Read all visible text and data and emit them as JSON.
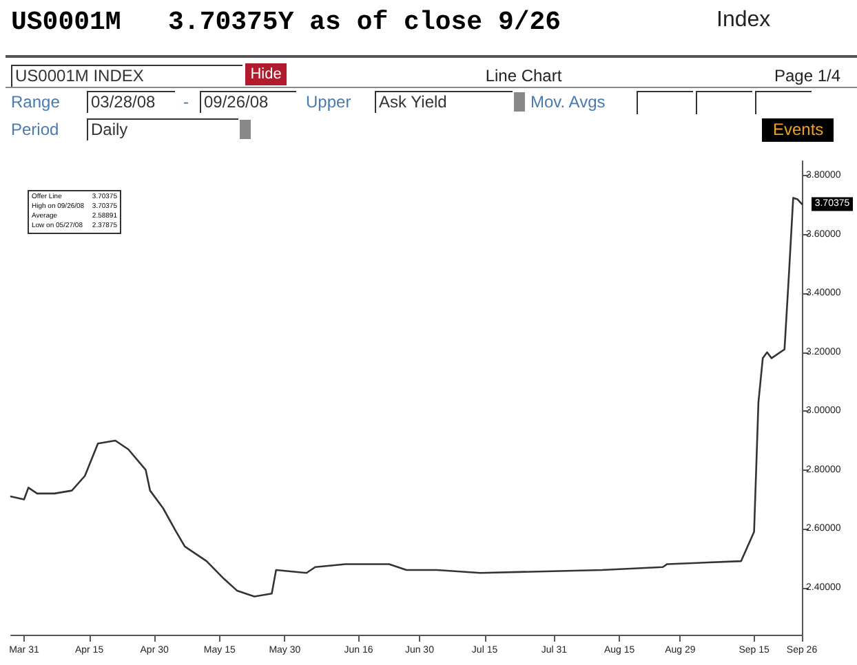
{
  "chart_data": {
    "type": "line",
    "title": "US0001M   3.70375Y as of close 9/26",
    "x": [
      "--03-28",
      "--03-31",
      "--04-01",
      "--04-03",
      "--04-07",
      "--04-11",
      "--04-14",
      "--04-17",
      "--04-21",
      "--04-24",
      "--04-28",
      "--04-29",
      "--05-02",
      "--05-05",
      "--05-07",
      "--05-12",
      "--05-16",
      "--05-19",
      "--05-23",
      "--05-27",
      "--05-28",
      "--06-04",
      "--06-06",
      "--06-13",
      "--06-23",
      "--06-27",
      "--07-04",
      "--07-14",
      "--08-11",
      "--08-25",
      "--08-26",
      "--09-12",
      "--09-15",
      "--09-16",
      "--09-17",
      "--09-18",
      "--09-19",
      "--09-22",
      "--09-23",
      "--09-24",
      "--09-25",
      "--09-26"
    ],
    "series": [
      {
        "color": "#333333",
        "values": [
          2.71,
          2.7,
          2.74,
          2.72,
          2.72,
          2.73,
          2.78,
          2.89,
          2.9,
          2.87,
          2.8,
          2.73,
          2.67,
          2.59,
          2.54,
          2.49,
          2.43,
          2.39,
          2.37,
          2.38,
          2.46,
          2.45,
          2.47,
          2.48,
          2.48,
          2.46,
          2.46,
          2.45,
          2.46,
          2.47,
          2.48,
          2.49,
          2.59,
          3.03,
          3.18,
          3.2,
          3.18,
          3.21,
          3.46,
          3.725,
          3.72,
          3.70375
        ]
      }
    ],
    "xlim": [
      "--03-28",
      "--09-26"
    ],
    "xticks": [
      {
        "value": "--03-31",
        "label": "Mar 31"
      },
      {
        "value": "--04-15",
        "label": "Apr 15"
      },
      {
        "value": "--04-30",
        "label": "Apr 30"
      },
      {
        "value": "--05-15",
        "label": "May 15"
      },
      {
        "value": "--05-30",
        "label": "May 30"
      },
      {
        "value": "--06-16",
        "label": "Jun 16"
      },
      {
        "value": "--06-30",
        "label": "Jun 30"
      },
      {
        "value": "--07-15",
        "label": "Jul 15"
      },
      {
        "value": "--07-31",
        "label": "Jul 31"
      },
      {
        "value": "--08-15",
        "label": "Aug 15"
      },
      {
        "value": "--08-29",
        "label": "Aug 29"
      },
      {
        "value": "--09-15",
        "label": "Sep 15"
      },
      {
        "value": "--09-26",
        "label": "Sep 26"
      }
    ],
    "ylim": [
      2.24,
      3.85
    ],
    "yticks": [
      {
        "value": 2.4,
        "label": "2.40000"
      },
      {
        "value": 2.6,
        "label": "2.60000"
      },
      {
        "value": 2.8,
        "label": "2.80000"
      },
      {
        "value": 3.0,
        "label": "3.00000"
      },
      {
        "value": 3.2,
        "label": "3.20000"
      },
      {
        "value": 3.4,
        "label": "3.40000"
      },
      {
        "value": 3.6,
        "label": "3.60000"
      },
      {
        "value": 3.8,
        "label": "3.80000"
      }
    ],
    "grid": false,
    "marker": "none",
    "line_style": "solid",
    "annotations": [
      "Index",
      "US0001M INDEX",
      "Hide",
      "Line Chart",
      "Page 1/4",
      "Range",
      "03/28/08",
      "-",
      "09/26/08",
      "Upper",
      "Ask Yield",
      "Mov. Avgs",
      "Period",
      "Daily",
      "Events",
      "Offer Line",
      "3.70375",
      "High on 09/26/08",
      "3.70375",
      "Average",
      "2.58891",
      "Low on 05/27/08",
      "2.37875",
      {
        "text": "3.70375",
        "x": "--09-26",
        "y": 3.70375
      }
    ]
  }
}
